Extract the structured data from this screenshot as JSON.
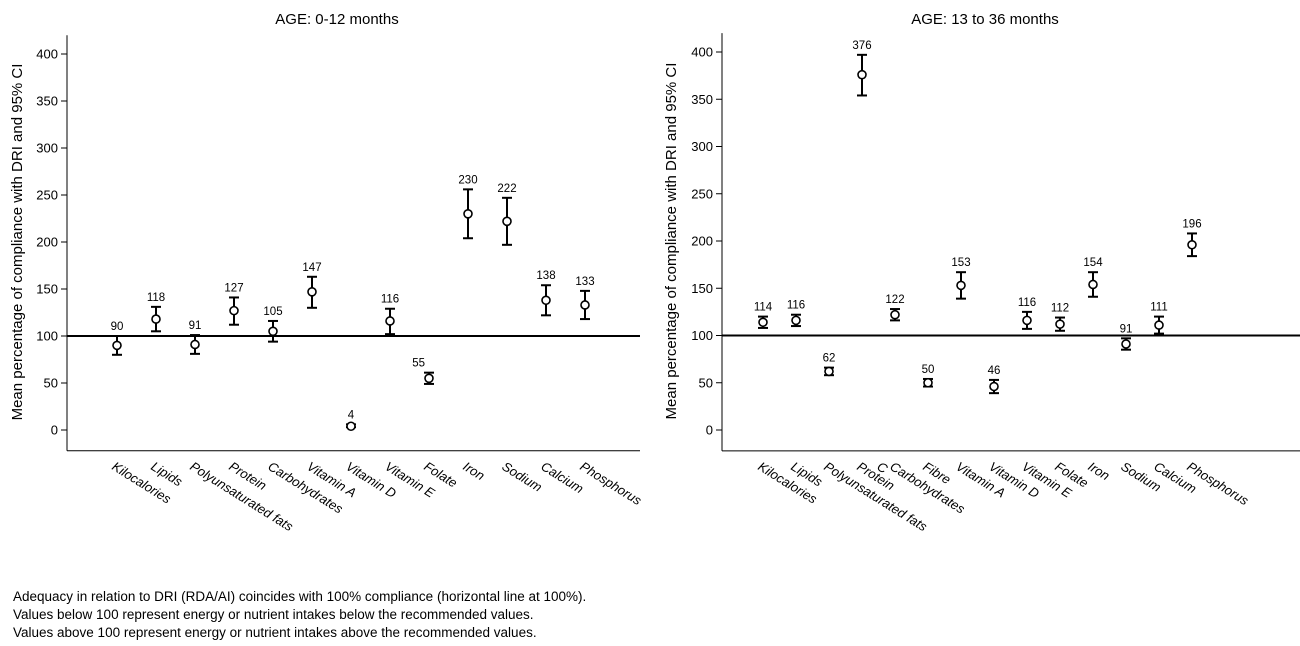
{
  "chart_data": [
    {
      "type": "scatter",
      "error_bars": true,
      "title": "AGE: 0-12 months",
      "xlabel": "",
      "ylabel": "Mean percentage of compliance with DRI and 95% CI",
      "ylim": [
        -20,
        420
      ],
      "yticks": [
        0,
        50,
        100,
        150,
        200,
        250,
        300,
        350,
        400
      ],
      "reference_line": 100,
      "categories": [
        "Kilocalories",
        "Lipids",
        "Polyunsaturated fats",
        "Protein",
        "Carbohydrates",
        "Vitamin A",
        "Vitamin D",
        "Vitamin E",
        "Folate",
        "Iron",
        "Sodium",
        "Calcium",
        "Phosphorus"
      ],
      "values": [
        90,
        118,
        91,
        127,
        105,
        147,
        4,
        116,
        55,
        230,
        222,
        138,
        133
      ],
      "ci_lower": [
        80,
        105,
        81,
        112,
        94,
        130,
        3,
        102,
        49,
        204,
        197,
        122,
        118
      ],
      "ci_upper": [
        100,
        131,
        101,
        141,
        116,
        163,
        6,
        129,
        61,
        256,
        247,
        154,
        148
      ],
      "data_labels": [
        "90",
        "118",
        "91",
        "127",
        "105",
        "147",
        "4",
        "116",
        "55",
        "230",
        "222",
        "138",
        "133"
      ]
    },
    {
      "type": "scatter",
      "error_bars": true,
      "title": "AGE: 13 to 36 months",
      "xlabel": "",
      "ylabel": "Mean percentage of compliance with DRI and 95% CI",
      "ylim": [
        -20,
        420
      ],
      "yticks": [
        0,
        50,
        100,
        150,
        200,
        250,
        300,
        350,
        400
      ],
      "reference_line": 100,
      "categories": [
        "Kilocalories",
        "Lipids",
        "Polyunsaturated fats",
        "Protein",
        "C",
        "Carbohydrates",
        "Fibre",
        "Vitamin A",
        "Vitamin D",
        "Vitamin E",
        "Folate",
        "Iron",
        "Sodium",
        "Calcium",
        "Phosphorus"
      ],
      "x": [
        1,
        2,
        3,
        4,
        5,
        6,
        7,
        8,
        9,
        10,
        11,
        12,
        13,
        14
      ],
      "point_categories": [
        "Kilocalories",
        "Lipids",
        "Polyunsaturated fats",
        "Protein",
        "Carbohydrates",
        "Fibre",
        "Vitamin A",
        "Vitamin D",
        "Vitamin E",
        "Folate",
        "Iron",
        "Sodium",
        "Calcium",
        "Phosphorus"
      ],
      "values": [
        114,
        116,
        62,
        376,
        122,
        50,
        153,
        46,
        116,
        112,
        154,
        91,
        111,
        196
      ],
      "ci_lower": [
        108,
        110,
        58,
        354,
        116,
        46,
        139,
        39,
        107,
        105,
        141,
        85,
        102,
        184
      ],
      "ci_upper": [
        120,
        122,
        66,
        397,
        128,
        54,
        167,
        53,
        125,
        119,
        167,
        97,
        120,
        208
      ],
      "data_labels": [
        "114",
        "116",
        "62",
        "376",
        "122",
        "50",
        "153",
        "46",
        "116",
        "112",
        "154",
        "91",
        "111",
        "196"
      ]
    }
  ],
  "notes": [
    "Adequacy in relation to DRI (RDA/AI) coincides with 100% compliance (horizontal line at 100%).",
    "Values below 100 represent energy or nutrient intakes below the recommended values.",
    "Values above 100 represent energy or nutrient intakes above the recommended values."
  ]
}
